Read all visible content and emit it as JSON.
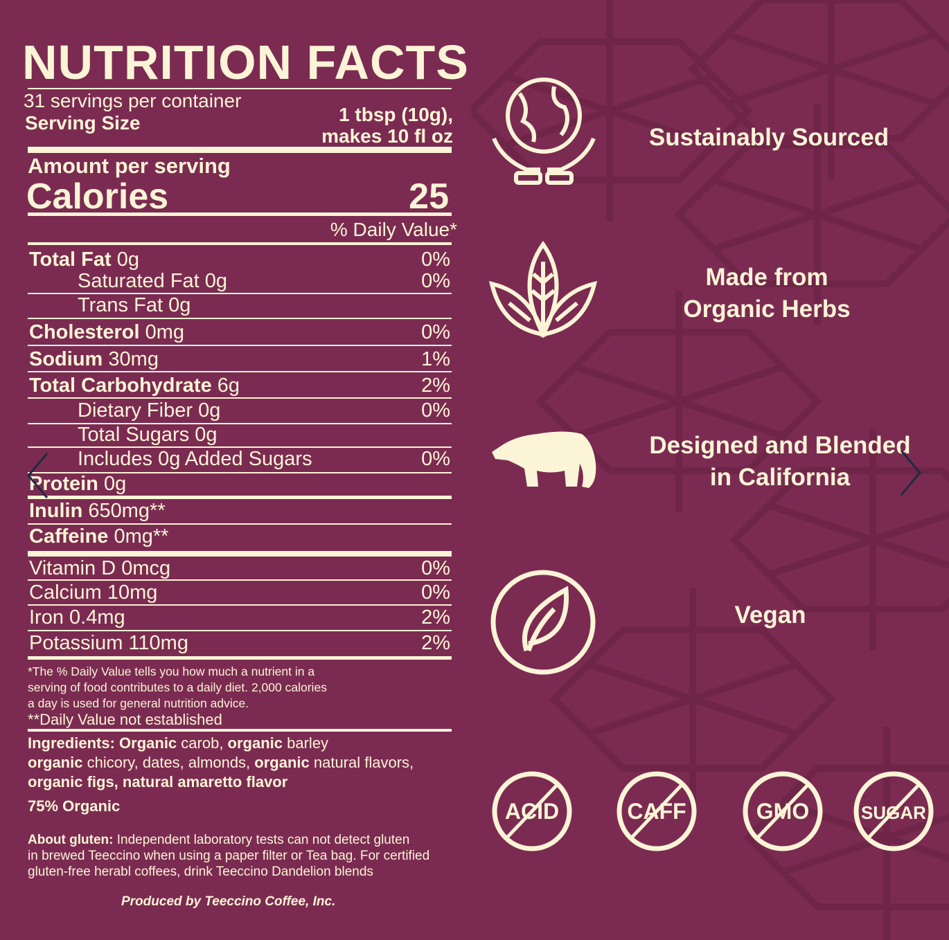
{
  "label": {
    "title": "NUTRITION FACTS",
    "servings": "31 servings per container",
    "serving_size_label": "Serving Size",
    "serving_size_value_1": "1 tbsp (10g),",
    "serving_size_value_2": "makes 10 fl oz",
    "amount_per_serving": "Amount per serving",
    "calories_label": "Calories",
    "calories_value": "25",
    "daily_value_header": "% Daily Value*",
    "rows": [
      {
        "name": "Total Fat",
        "amount": "0g",
        "dv": "0%",
        "bold": true,
        "indent": 0
      },
      {
        "name": "Saturated Fat",
        "amount": "0g",
        "dv": "0%",
        "bold": false,
        "indent": 1
      },
      {
        "name": "Trans Fat",
        "amount": "0g",
        "dv": "",
        "bold": false,
        "indent": 1
      },
      {
        "name": "Cholesterol",
        "amount": "0mg",
        "dv": "0%",
        "bold": true,
        "indent": 0
      },
      {
        "name": "Sodium",
        "amount": "30mg",
        "dv": "1%",
        "bold": true,
        "indent": 0
      },
      {
        "name": "Total Carbohydrate",
        "amount": "6g",
        "dv": "2%",
        "bold": true,
        "indent": 0
      },
      {
        "name": "Dietary Fiber",
        "amount": "0g",
        "dv": "0%",
        "bold": false,
        "indent": 1
      },
      {
        "name": "Total Sugars",
        "amount": "0g",
        "dv": "",
        "bold": false,
        "indent": 1
      },
      {
        "name": "Includes 0g Added Sugars",
        "amount": "",
        "dv": "0%",
        "bold": false,
        "indent": 1
      },
      {
        "name": "Protein",
        "amount": "0g",
        "dv": "",
        "bold": true,
        "indent": 0
      },
      {
        "name": "Inulin",
        "amount": "650mg**",
        "dv": "",
        "bold": true,
        "indent": 0
      },
      {
        "name": "Caffeine",
        "amount": "0mg**",
        "dv": "",
        "bold": true,
        "indent": 0
      },
      {
        "name": "Vitamin D",
        "amount": "0mcg",
        "dv": "0%",
        "bold": false,
        "indent": 0
      },
      {
        "name": "Calcium",
        "amount": "10mg",
        "dv": "0%",
        "bold": false,
        "indent": 0
      },
      {
        "name": "Iron",
        "amount": "0.4mg",
        "dv": "2%",
        "bold": false,
        "indent": 0
      },
      {
        "name": "Potassium",
        "amount": "110mg",
        "dv": "2%",
        "bold": false,
        "indent": 0
      }
    ],
    "footnote_1": "*The % Daily Value tells you how much a nutrient in a",
    "footnote_2": "serving of food contributes to a daily diet. 2,000 calories",
    "footnote_3": "a day is used for general nutrition advice.",
    "footnote_4": "**Daily Value not established",
    "ingredients_label": "Ingredients:",
    "ingredients": [
      {
        "t": "Organic",
        "b": true
      },
      {
        "t": " carob, ",
        "b": false
      },
      {
        "t": "organic",
        "b": true
      },
      {
        "t": " barley",
        "b": false
      },
      {
        "t": "\n",
        "b": false
      },
      {
        "t": "organic",
        "b": true
      },
      {
        "t": " chicory, dates, almonds, ",
        "b": false
      },
      {
        "t": "organic",
        "b": true
      },
      {
        "t": " natural flavors,",
        "b": false
      },
      {
        "t": "\n",
        "b": false
      },
      {
        "t": "organic figs, natural amaretto flavor",
        "b": true
      }
    ],
    "organic_pct": "75% Organic",
    "gluten_label": "About gluten:",
    "gluten_text_1": " Independent laboratory tests can not detect gluten",
    "gluten_text_2": "in brewed Teeccino when using a paper filter or Tea bag. For certified",
    "gluten_text_3": "gluten-free herabl coffees, drink Teeccino Dandelion blends",
    "producer": "Produced by Teeccino Coffee, Inc."
  },
  "features": [
    {
      "icon": "globe-hands-icon",
      "line1": "Sustainably Sourced",
      "line2": ""
    },
    {
      "icon": "leaves-icon",
      "line1": "Made from",
      "line2": "Organic Herbs"
    },
    {
      "icon": "bear-icon",
      "line1": "Designed and Blended",
      "line2": "in California"
    },
    {
      "icon": "vegan-leaf-icon",
      "line1": "Vegan",
      "line2": ""
    }
  ],
  "badges": [
    "ACID",
    "CAFF",
    "GMO",
    "SUGAR"
  ],
  "carousel": {
    "prev_icon": "chevron-left-icon",
    "next_icon": "chevron-right-icon"
  },
  "colors": {
    "background": "#7b2b51",
    "text": "#fbf4d6",
    "arrow": "#1f2a44"
  }
}
